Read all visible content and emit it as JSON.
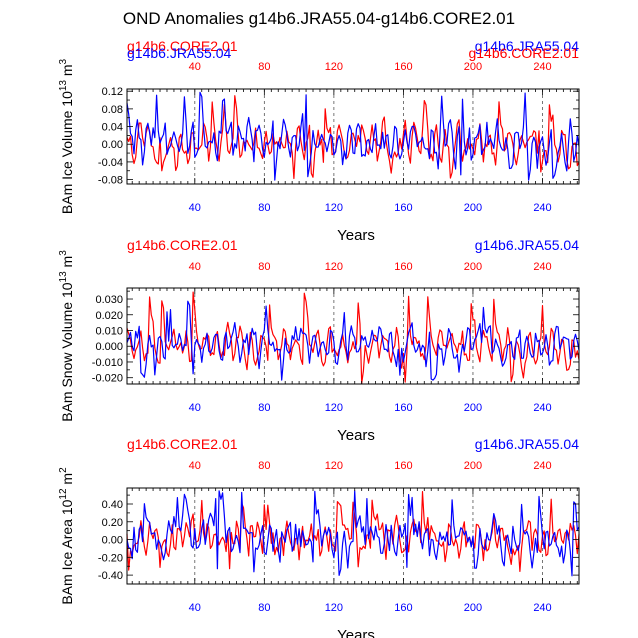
{
  "figure": {
    "title": "OND Anomalies g14b6.JRA55.04-g14b6.CORE2.01"
  },
  "colors": {
    "red": "#ff0000",
    "blue": "#0000ff",
    "axis": "#000000",
    "grid": "#555555"
  },
  "chart_data": [
    {
      "type": "line",
      "ylabel": "BAm Ice Volume 10",
      "ylabel_exp": "13",
      "ylabel_unit": "m",
      "ylabel_unit_exp": "3",
      "xlabel": "Years",
      "xlim": [
        1,
        261
      ],
      "ylim": [
        -0.09,
        0.125
      ],
      "yticks": [
        -0.08,
        -0.06,
        -0.04,
        -0.02,
        0.0,
        0.02,
        0.04,
        0.06,
        0.08,
        0.1,
        0.12
      ],
      "ytick_labels": [
        "-0.08",
        "",
        "-0.04",
        "",
        "0.00",
        "",
        "0.04",
        "",
        "0.08",
        "",
        "0.12"
      ],
      "xticks_bottom": [
        40,
        80,
        120,
        160,
        200,
        240
      ],
      "xtick_labels_bottom": [
        "40",
        "80",
        "120",
        "160",
        "200",
        "240"
      ],
      "xticks_top": [
        40,
        80,
        120,
        160,
        200,
        240
      ],
      "xtick_labels_top": [
        "40",
        "80",
        "120",
        "160",
        "200",
        "240"
      ],
      "vgrid": [
        40,
        80,
        120,
        160,
        200,
        240
      ],
      "legend_left": "g14b6.CORE2.01",
      "legend_left_overlap": "g14b6.JRA55.04",
      "legend_right": "g14b6.JRA55.04",
      "legend_right_overlap": "g14b6.CORE2.01",
      "series": [
        {
          "name": "g14b6.CORE2.01",
          "color": "red",
          "amp": 0.035,
          "seed": 11,
          "period": 6.1,
          "spike": 0.11
        },
        {
          "name": "g14b6.JRA55.04",
          "color": "blue",
          "amp": 0.04,
          "seed": 29,
          "period": 5.3,
          "spike": 0.12
        }
      ]
    },
    {
      "type": "line",
      "ylabel": "BAm Snow Volume 10",
      "ylabel_exp": "13",
      "ylabel_unit": "m",
      "ylabel_unit_exp": "3",
      "xlabel": "Years",
      "xlim": [
        1,
        261
      ],
      "ylim": [
        -0.024,
        0.037
      ],
      "yticks": [
        -0.02,
        -0.015,
        -0.01,
        -0.005,
        0.0,
        0.005,
        0.01,
        0.015,
        0.02,
        0.025,
        0.03,
        0.035
      ],
      "ytick_labels": [
        "-0.020",
        "",
        "-0.010",
        "",
        "0.000",
        "",
        "0.010",
        "",
        "0.020",
        "",
        "0.030",
        ""
      ],
      "xticks_bottom": [
        40,
        80,
        120,
        160,
        200,
        240
      ],
      "xtick_labels_bottom": [
        "40",
        "80",
        "120",
        "160",
        "200",
        "240"
      ],
      "xticks_top": [
        40,
        80,
        120,
        160,
        200,
        240
      ],
      "xtick_labels_top": [
        "40",
        "80",
        "120",
        "160",
        "200",
        "240"
      ],
      "vgrid": [
        40,
        80,
        120,
        160,
        200,
        240
      ],
      "legend_left": "g14b6.CORE2.01",
      "legend_right": "g14b6.JRA55.04",
      "series": [
        {
          "name": "g14b6.CORE2.01",
          "color": "red",
          "amp": 0.009,
          "seed": 47,
          "period": 6.4,
          "spike": 0.035
        },
        {
          "name": "g14b6.JRA55.04",
          "color": "blue",
          "amp": 0.009,
          "seed": 83,
          "period": 5.6,
          "spike": 0.03
        }
      ]
    },
    {
      "type": "line",
      "ylabel": "BAm Ice Area 10",
      "ylabel_exp": "12",
      "ylabel_unit": "m",
      "ylabel_unit_exp": "2",
      "xlabel": "Years",
      "xlim": [
        1,
        261
      ],
      "ylim": [
        -0.5,
        0.58
      ],
      "yticks": [
        -0.4,
        -0.3,
        -0.2,
        -0.1,
        0.0,
        0.1,
        0.2,
        0.3,
        0.4,
        0.5
      ],
      "ytick_labels": [
        "-0.40",
        "",
        "-0.20",
        "",
        "0.00",
        "",
        "0.20",
        "",
        "0.40",
        ""
      ],
      "xticks_bottom": [
        40,
        80,
        120,
        160,
        200,
        240
      ],
      "xtick_labels_bottom": [
        "40",
        "80",
        "120",
        "160",
        "200",
        "240"
      ],
      "xticks_top": [
        40,
        80,
        120,
        160,
        200,
        240
      ],
      "xtick_labels_top": [
        "40",
        "80",
        "120",
        "160",
        "200",
        "240"
      ],
      "vgrid": [
        40,
        80,
        120,
        160,
        200,
        240
      ],
      "legend_left": "g14b6.CORE2.01",
      "legend_right": "g14b6.JRA55.04",
      "series": [
        {
          "name": "g14b6.CORE2.01",
          "color": "red",
          "amp": 0.17,
          "seed": 5,
          "period": 4.2,
          "spike": 0.55
        },
        {
          "name": "g14b6.JRA55.04",
          "color": "blue",
          "amp": 0.17,
          "seed": 61,
          "period": 3.9,
          "spike": 0.55
        }
      ]
    }
  ]
}
